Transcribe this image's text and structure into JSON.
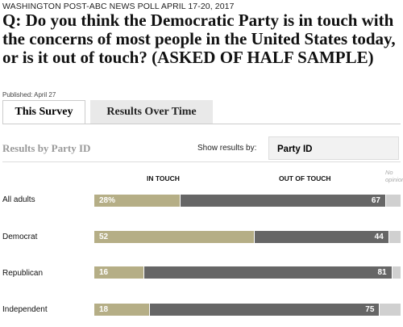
{
  "header": {
    "kicker": "WASHINGTON POST-ABC NEWS POLL APRIL 17-20, 2017",
    "question": "Q: Do you think the Democratic Party is in touch with the concerns of most people in the United States today, or is it out of touch? (ASKED OF HALF SAMPLE)",
    "published": "Published: April 27"
  },
  "tabs": [
    {
      "label": "This Survey",
      "active": true
    },
    {
      "label": "Results Over Time",
      "active": false
    }
  ],
  "results": {
    "title": "Results by Party ID",
    "show_label": "Show results by:",
    "selected_option": "Party ID"
  },
  "columns": {
    "in_touch": "IN TOUCH",
    "out_of_touch": "OUT OF TOUCH",
    "no_opinion": "No opinion"
  },
  "colors": {
    "in_touch": "#b5ae86",
    "out_of_touch": "#666666",
    "no_opinion": "#d0d0d0"
  },
  "rows": [
    {
      "label": "All adults",
      "in_label": "28%",
      "out_label": "67",
      "in": 28,
      "out": 67
    },
    {
      "label": "Democrat",
      "in_label": "52",
      "out_label": "44",
      "in": 52,
      "out": 44
    },
    {
      "label": "Republican",
      "in_label": "16",
      "out_label": "81",
      "in": 16,
      "out": 81
    },
    {
      "label": "Independent",
      "in_label": "18",
      "out_label": "75",
      "in": 18,
      "out": 75
    }
  ]
}
